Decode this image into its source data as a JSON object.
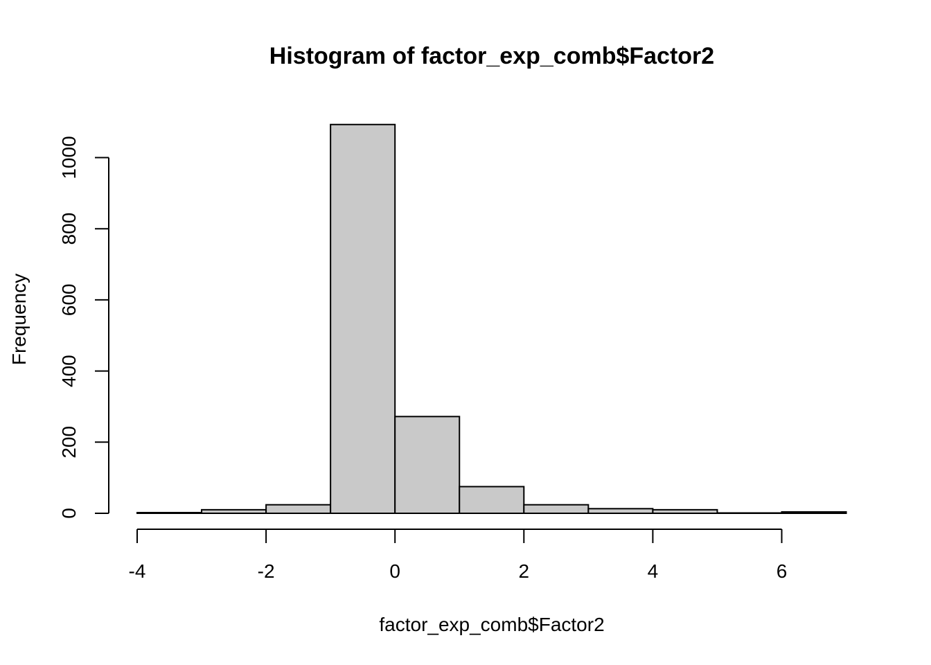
{
  "chart_data": {
    "type": "bar",
    "title": "Histogram of factor_exp_comb$Factor2",
    "xlabel": "factor_exp_comb$Factor2",
    "ylabel": "Frequency",
    "bins": [
      {
        "x0": -4,
        "x1": -3,
        "value": 2
      },
      {
        "x0": -3,
        "x1": -2,
        "value": 10
      },
      {
        "x0": -2,
        "x1": -1,
        "value": 24
      },
      {
        "x0": -1,
        "x1": 0,
        "value": 1093
      },
      {
        "x0": 0,
        "x1": 1,
        "value": 272
      },
      {
        "x0": 1,
        "x1": 2,
        "value": 75
      },
      {
        "x0": 2,
        "x1": 3,
        "value": 24
      },
      {
        "x0": 3,
        "x1": 4,
        "value": 13
      },
      {
        "x0": 4,
        "x1": 5,
        "value": 10
      },
      {
        "x0": 5,
        "x1": 6,
        "value": 1
      },
      {
        "x0": 6,
        "x1": 7,
        "value": 4
      }
    ],
    "xlim": [
      -4,
      7
    ],
    "ylim": [
      0,
      1093
    ],
    "x_ticks": [
      "-4",
      "-2",
      "0",
      "2",
      "4",
      "6"
    ],
    "y_ticks": [
      "0",
      "200",
      "400",
      "600",
      "800",
      "1000"
    ],
    "grid": false,
    "colors": {
      "bar_fill": "#c9c9c9",
      "bar_stroke": "#000000"
    }
  }
}
